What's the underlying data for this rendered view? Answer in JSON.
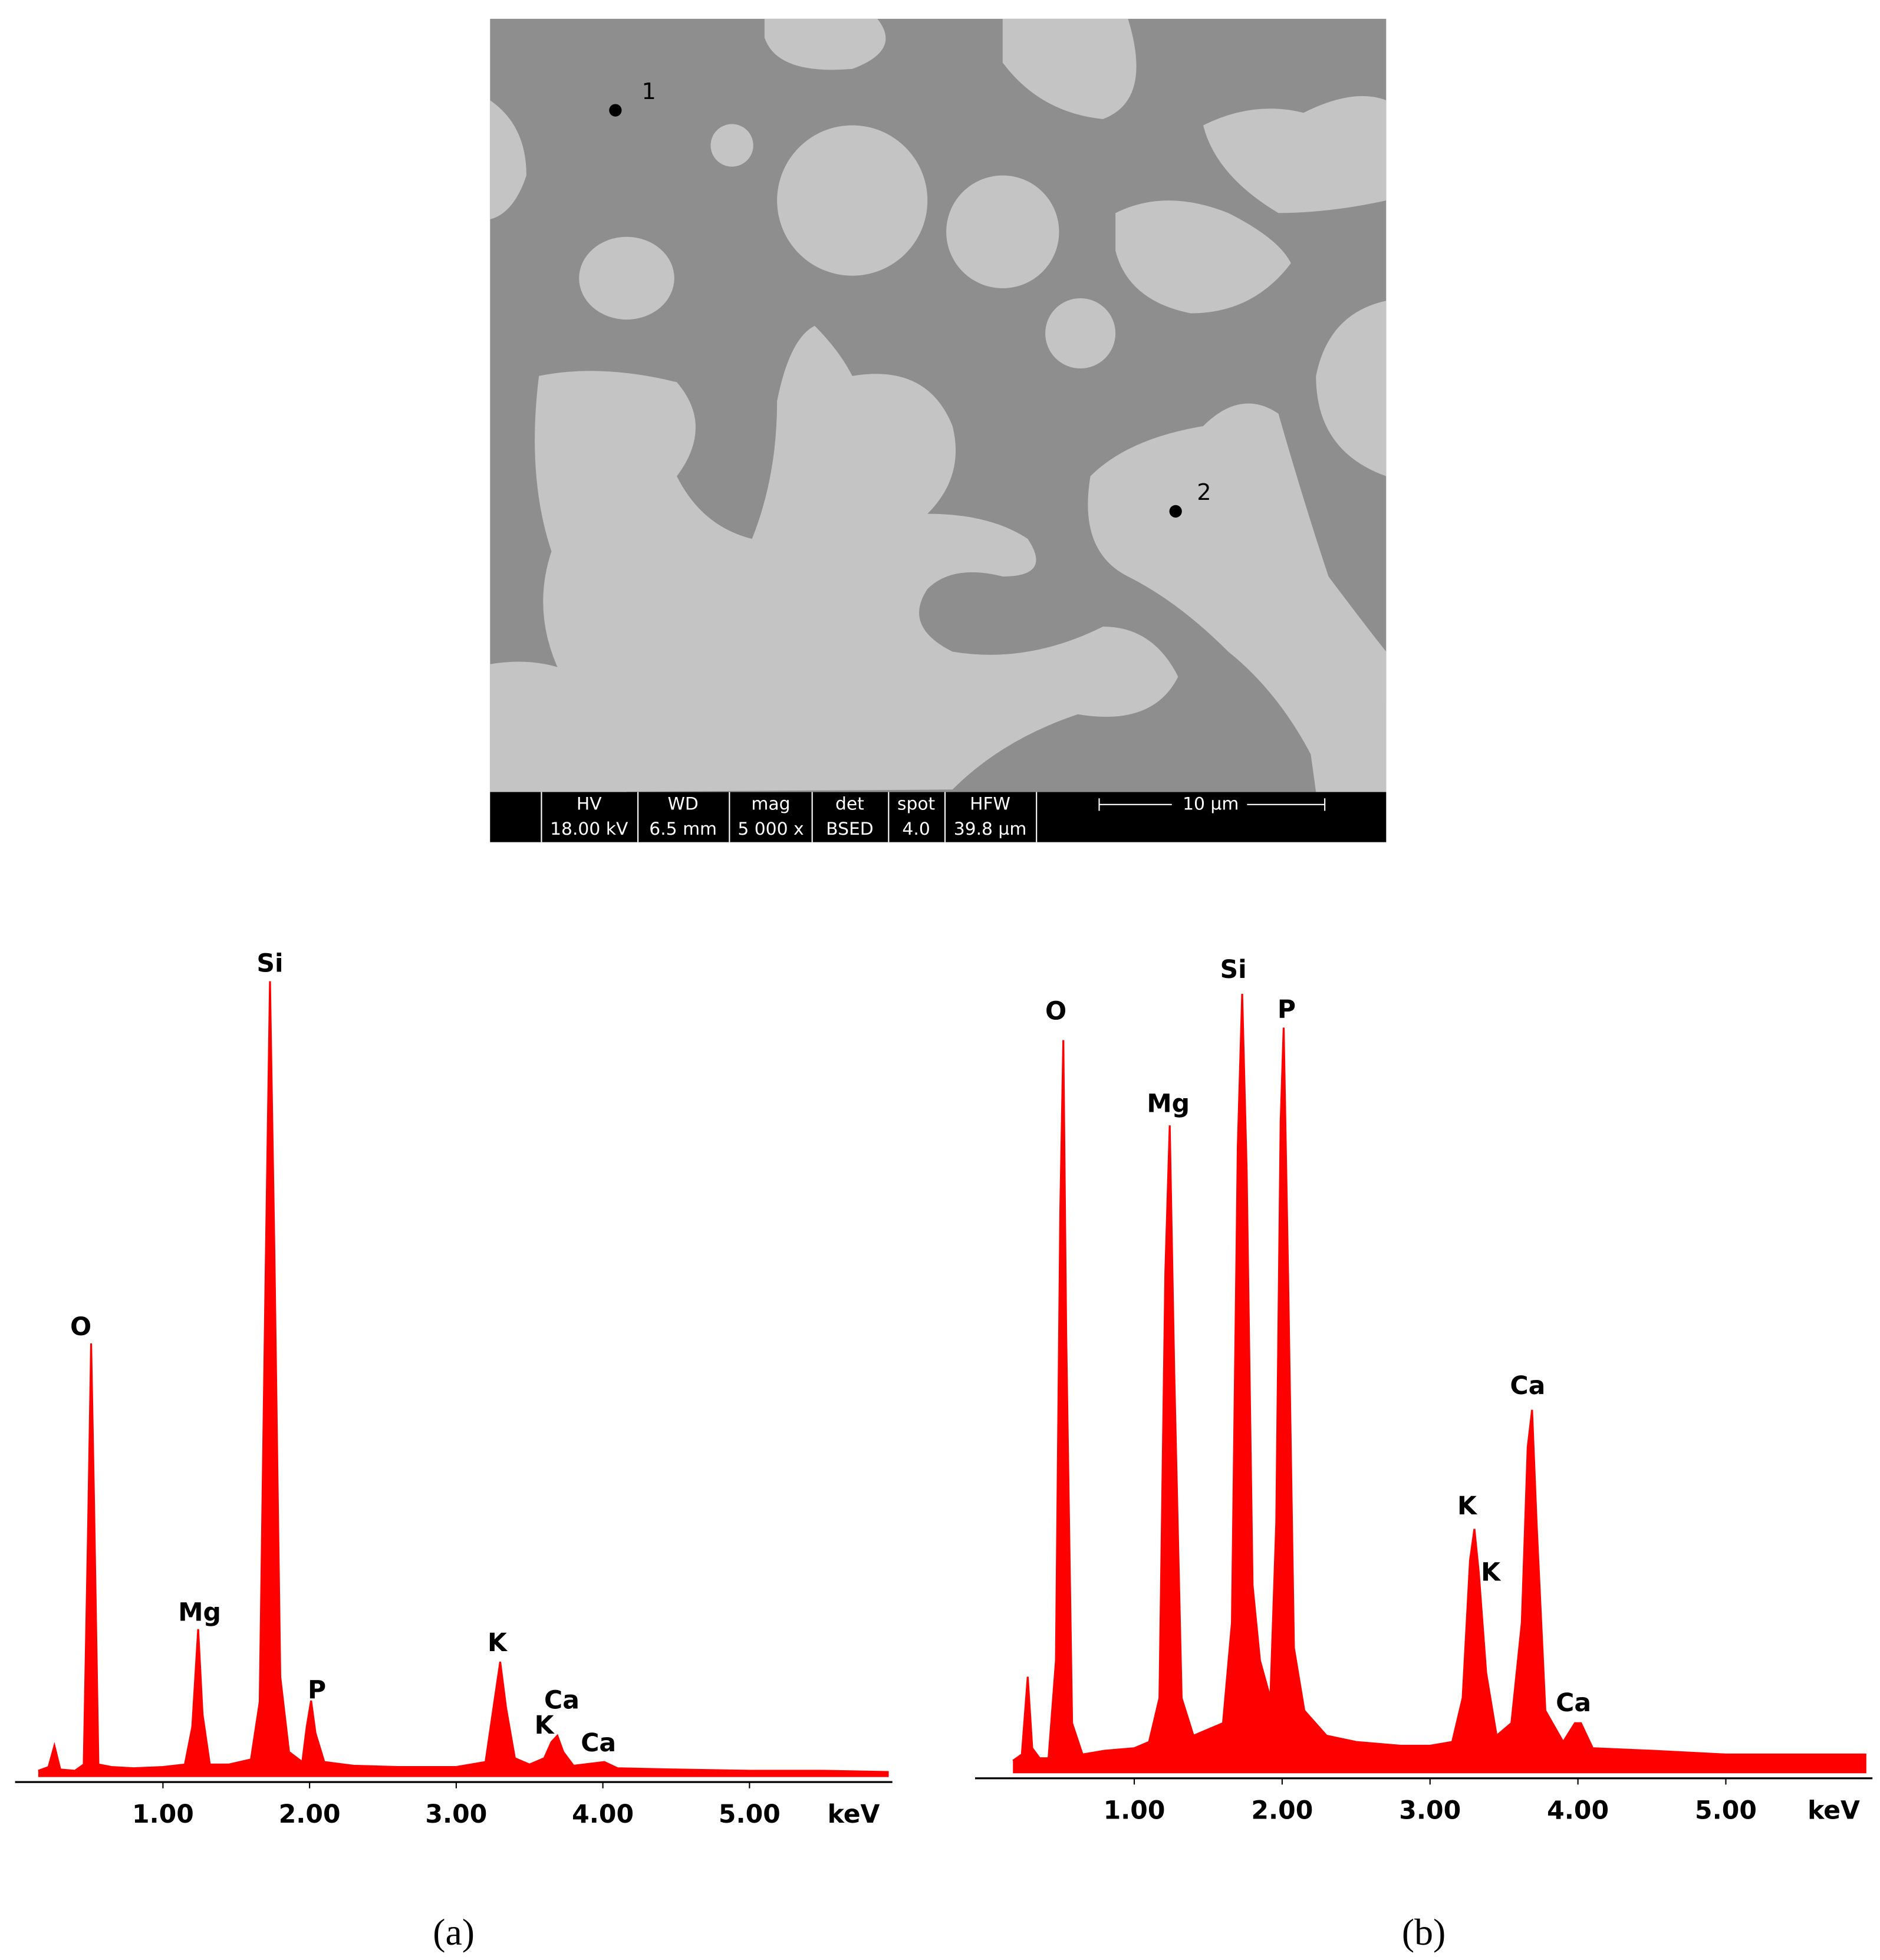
{
  "image": {
    "points": [
      "1",
      "2"
    ],
    "info": [
      {
        "label": "HV",
        "value": "18.00 kV"
      },
      {
        "label": "WD",
        "value": "6.5 mm"
      },
      {
        "label": "mag",
        "value": "5 000 x"
      },
      {
        "label": "det",
        "value": "BSED"
      },
      {
        "label": "spot",
        "value": "4.0"
      },
      {
        "label": "HFW",
        "value": "39.8 µm"
      }
    ],
    "scale_bar": "10 µm"
  },
  "chart_data": [
    {
      "type": "area",
      "panel": "(a)",
      "x_label": "keV",
      "color": "#ff0000",
      "xlim": [
        0,
        6
      ],
      "ylim": [
        0,
        700
      ],
      "xticks": [
        {
          "value": 1,
          "label": "1.00"
        },
        {
          "value": 2,
          "label": "2.00"
        },
        {
          "value": 3,
          "label": "3.00"
        },
        {
          "value": 4,
          "label": "4.00"
        },
        {
          "value": 5,
          "label": "5.00"
        }
      ],
      "x": [
        0.15,
        0.22,
        0.26,
        0.3,
        0.4,
        0.46,
        0.49,
        0.51,
        0.53,
        0.56,
        0.65,
        0.8,
        1.0,
        1.15,
        1.2,
        1.24,
        1.27,
        1.32,
        1.45,
        1.6,
        1.66,
        1.7,
        1.73,
        1.76,
        1.8,
        1.86,
        1.95,
        1.98,
        2.01,
        2.04,
        2.1,
        2.3,
        2.6,
        3.0,
        3.2,
        3.26,
        3.3,
        3.34,
        3.4,
        3.5,
        3.6,
        3.65,
        3.69,
        3.73,
        3.8,
        4.01,
        4.1,
        4.5,
        5.0,
        5.5,
        5.95
      ],
      "values": [
        5,
        8,
        25,
        6,
        5,
        10,
        200,
        346,
        220,
        10,
        8,
        7,
        8,
        10,
        40,
        118,
        50,
        10,
        10,
        14,
        60,
        400,
        635,
        420,
        80,
        20,
        12,
        40,
        61,
        35,
        12,
        9,
        8,
        8,
        12,
        60,
        92,
        55,
        15,
        10,
        15,
        28,
        33,
        20,
        9,
        12,
        7,
        6,
        5,
        5,
        4
      ],
      "annotations": [
        {
          "text": "O",
          "x": 0.44,
          "y": 358
        },
        {
          "text": "Si",
          "x": 1.73,
          "y": 648
        },
        {
          "text": "Mg",
          "x": 1.25,
          "y": 130
        },
        {
          "text": "P",
          "x": 2.05,
          "y": 68
        },
        {
          "text": "K",
          "x": 3.28,
          "y": 106
        },
        {
          "text": "Ca",
          "x": 3.72,
          "y": 60
        },
        {
          "text": "K",
          "x": 3.6,
          "y": 40
        },
        {
          "text": "Ca",
          "x": 3.97,
          "y": 26
        }
      ]
    },
    {
      "type": "area",
      "panel": "(b)",
      "x_label": "keV",
      "color": "#ff0000",
      "xlim": [
        0,
        6
      ],
      "ylim": [
        0,
        700
      ],
      "xticks": [
        {
          "value": 1,
          "label": "1.00"
        },
        {
          "value": 2,
          "label": "2.00"
        },
        {
          "value": 3,
          "label": "3.00"
        },
        {
          "value": 4,
          "label": "4.00"
        },
        {
          "value": 5,
          "label": "5.00"
        }
      ],
      "x": [
        0.18,
        0.24,
        0.28,
        0.31,
        0.36,
        0.42,
        0.47,
        0.5,
        0.52,
        0.54,
        0.58,
        0.65,
        0.8,
        1.0,
        1.1,
        1.17,
        1.21,
        1.24,
        1.27,
        1.32,
        1.4,
        1.5,
        1.6,
        1.66,
        1.7,
        1.73,
        1.76,
        1.8,
        1.85,
        1.92,
        1.96,
        1.99,
        2.01,
        2.04,
        2.08,
        2.15,
        2.3,
        2.5,
        2.8,
        3.0,
        3.15,
        3.22,
        3.27,
        3.3,
        3.33,
        3.38,
        3.45,
        3.55,
        3.62,
        3.66,
        3.69,
        3.72,
        3.78,
        3.9,
        3.98,
        4.02,
        4.1,
        4.5,
        5.0,
        5.5,
        5.95
      ],
      "values": [
        10,
        15,
        77,
        20,
        12,
        12,
        90,
        450,
        585,
        350,
        40,
        15,
        18,
        20,
        25,
        60,
        400,
        517,
        320,
        60,
        30,
        35,
        40,
        120,
        500,
        622,
        480,
        150,
        90,
        60,
        200,
        520,
        595,
        400,
        100,
        50,
        30,
        25,
        22,
        22,
        25,
        60,
        170,
        195,
        160,
        80,
        30,
        40,
        120,
        260,
        290,
        200,
        50,
        25,
        40,
        40,
        20,
        18,
        15,
        15,
        15
      ],
      "annotations": [
        {
          "text": "O",
          "x": 0.47,
          "y": 607
        },
        {
          "text": "Si",
          "x": 1.67,
          "y": 640
        },
        {
          "text": "P",
          "x": 2.03,
          "y": 608
        },
        {
          "text": "Mg",
          "x": 1.23,
          "y": 533
        },
        {
          "text": "Ca",
          "x": 3.66,
          "y": 308
        },
        {
          "text": "K",
          "x": 3.25,
          "y": 212
        },
        {
          "text": "K",
          "x": 3.41,
          "y": 159
        },
        {
          "text": "Ca",
          "x": 3.97,
          "y": 55
        }
      ]
    }
  ]
}
